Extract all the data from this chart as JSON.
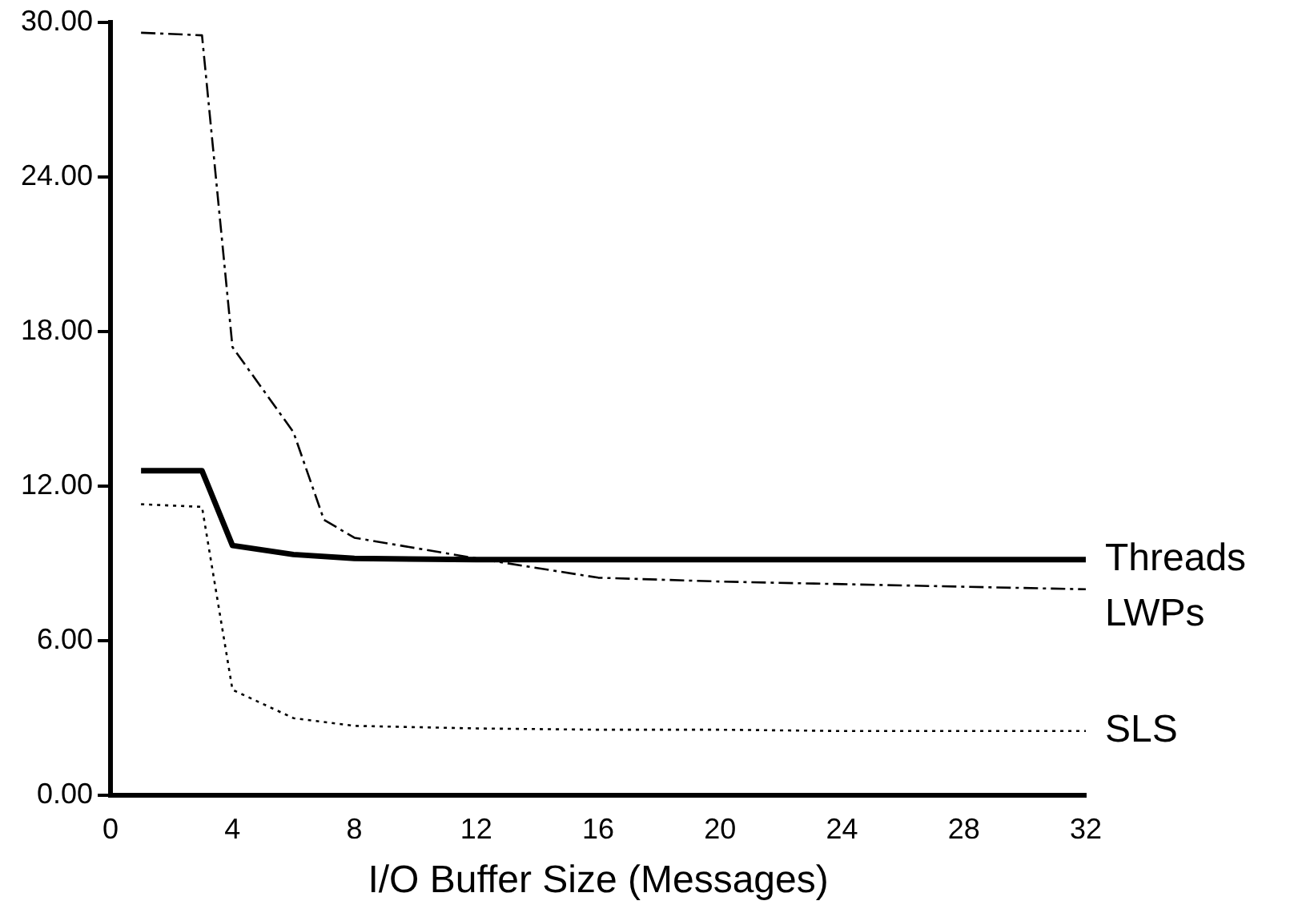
{
  "chart_data": {
    "type": "line",
    "xlabel": "I/O Buffer Size (Messages)",
    "xlim": [
      0,
      32
    ],
    "xticks": [
      0,
      4,
      8,
      12,
      16,
      20,
      24,
      28,
      32
    ],
    "ylim": [
      0,
      30
    ],
    "yticks": [
      {
        "value": 0,
        "label": "0.00"
      },
      {
        "value": 6,
        "label": "6.00"
      },
      {
        "value": 12,
        "label": "12.00"
      },
      {
        "value": 18,
        "label": "18.00"
      },
      {
        "value": 24,
        "label": "24.00"
      },
      {
        "value": 30,
        "label": "30.00"
      }
    ],
    "grid": false,
    "legend": false,
    "marker": "none",
    "series": [
      {
        "name": "Threads",
        "color": "#000000",
        "line_style": "solid",
        "x": [
          1,
          3,
          4,
          6,
          8,
          12,
          16,
          20,
          24,
          28,
          32
        ],
        "values": [
          12.6,
          12.6,
          9.7,
          9.35,
          9.2,
          9.15,
          9.15,
          9.15,
          9.15,
          9.15,
          9.15
        ]
      },
      {
        "name": "LWPs",
        "color": "#000000",
        "line_style": "dashed",
        "x": [
          1,
          3,
          4,
          6,
          7,
          8,
          12,
          16,
          20,
          24,
          28,
          32
        ],
        "values": [
          29.6,
          29.5,
          17.4,
          14.1,
          10.7,
          10.0,
          9.2,
          8.45,
          8.3,
          8.2,
          8.1,
          8.0
        ]
      },
      {
        "name": "SLS",
        "color": "#000000",
        "line_style": "dotted",
        "x": [
          1,
          3,
          4,
          6,
          8,
          12,
          16,
          20,
          24,
          28,
          32
        ],
        "values": [
          11.3,
          11.2,
          4.1,
          3.0,
          2.7,
          2.6,
          2.55,
          2.55,
          2.5,
          2.5,
          2.5
        ]
      }
    ]
  }
}
